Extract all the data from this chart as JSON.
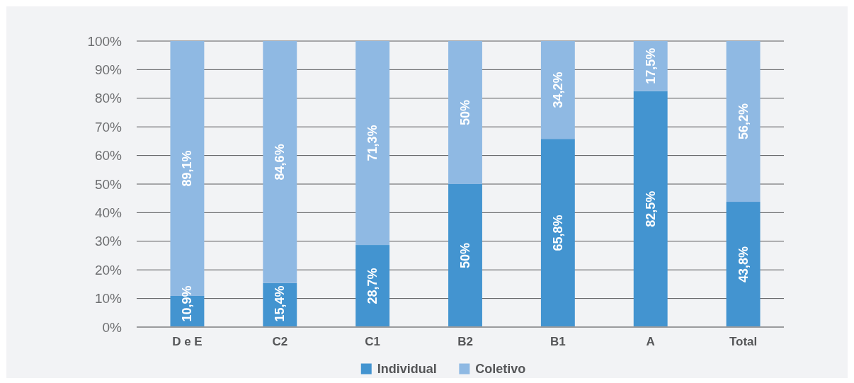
{
  "chart_data": {
    "type": "bar",
    "categories": [
      "D e E",
      "C2",
      "C1",
      "B2",
      "B1",
      "A",
      "Total"
    ],
    "series": [
      {
        "name": "Individual",
        "color": "#4394d0",
        "values": [
          10.9,
          15.4,
          28.7,
          50,
          65.8,
          82.5,
          43.8
        ],
        "value_labels": [
          "10,9%",
          "15,4%",
          "28,7%",
          "50%",
          "65,8%",
          "82,5%",
          "43,8%"
        ]
      },
      {
        "name": "Coletivo",
        "color": "#8fb9e3",
        "values": [
          89.1,
          84.6,
          71.3,
          50,
          34.2,
          17.5,
          56.2
        ],
        "value_labels": [
          "89,1%",
          "84,6%",
          "71,3%",
          "50%",
          "34,2%",
          "17,5%",
          "56,2%"
        ]
      }
    ],
    "stacked": true,
    "ylim": [
      0,
      100
    ],
    "yticks": [
      {
        "value": 0,
        "label": "0%"
      },
      {
        "value": 10,
        "label": "10%"
      },
      {
        "value": 20,
        "label": "20%"
      },
      {
        "value": 30,
        "label": "30%"
      },
      {
        "value": 40,
        "label": "40%"
      },
      {
        "value": 50,
        "label": "50%"
      },
      {
        "value": 60,
        "label": "60%"
      },
      {
        "value": 70,
        "label": "70%"
      },
      {
        "value": 80,
        "label": "80%"
      },
      {
        "value": 90,
        "label": "90%"
      },
      {
        "value": 100,
        "label": "100%"
      }
    ],
    "grid": "y",
    "legend": "bottom"
  }
}
